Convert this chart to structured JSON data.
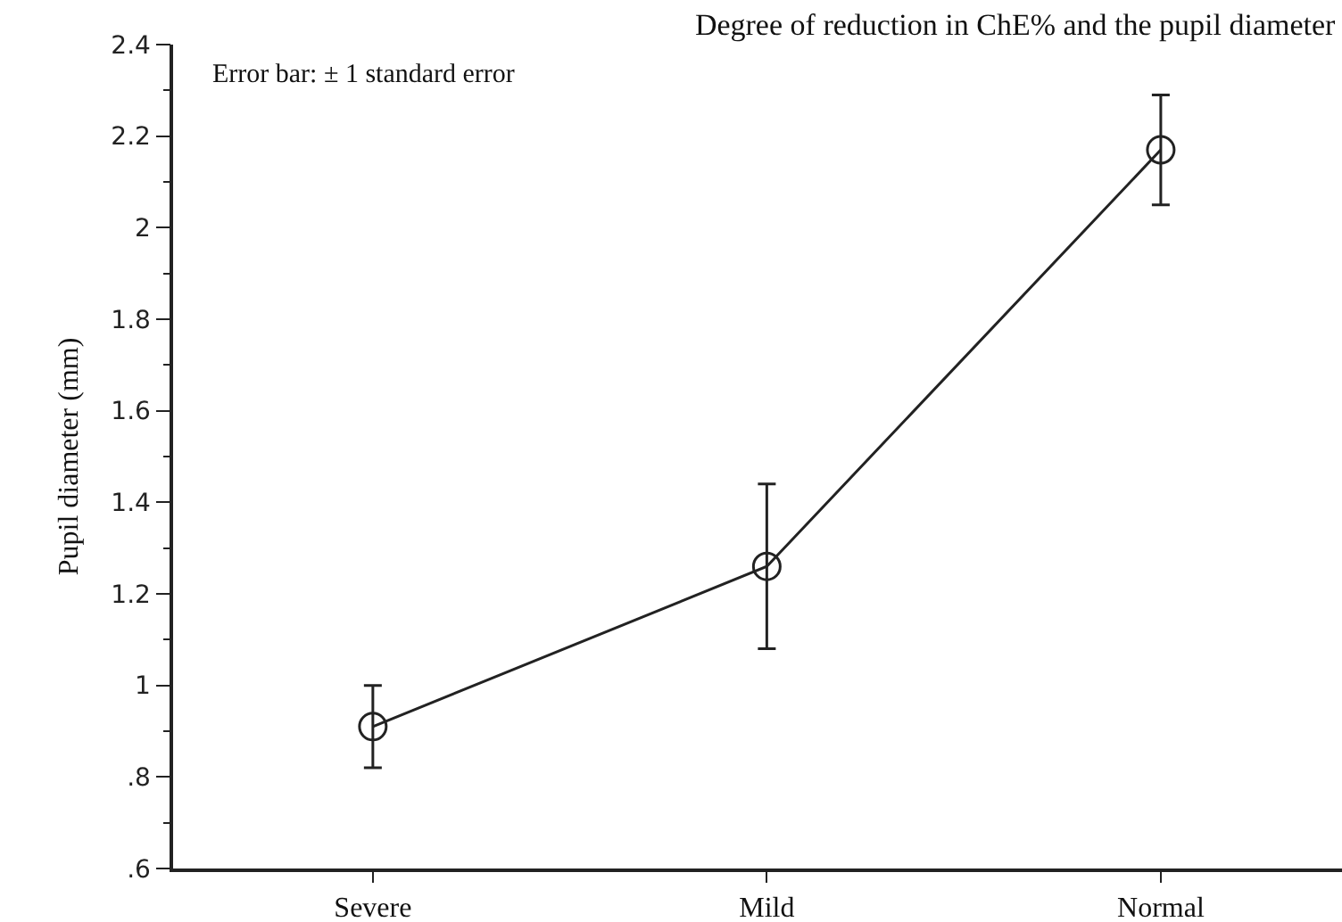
{
  "chart_data": {
    "type": "line",
    "title": "Degree of reduction in ChE% and the pupil diameter",
    "ylabel": "Pupil diameter (mm)",
    "annotations": [
      "Error bar: ± 1 standard error"
    ],
    "categories": [
      "Severe",
      "Mild",
      "Normal"
    ],
    "series": [
      {
        "color": "#222222",
        "values": [
          0.91,
          1.26,
          2.17
        ],
        "errors": [
          0.09,
          0.18,
          0.12
        ]
      }
    ],
    "ylim": [
      0.6,
      2.4
    ],
    "yticks": [
      {
        "value": 0.6,
        "label": ".6"
      },
      {
        "value": 0.8,
        "label": ".8"
      },
      1,
      1.2,
      1.4,
      1.6,
      1.8,
      2,
      2.2,
      2.4
    ],
    "grid": false,
    "marker": "circle",
    "line_style": "solid"
  }
}
